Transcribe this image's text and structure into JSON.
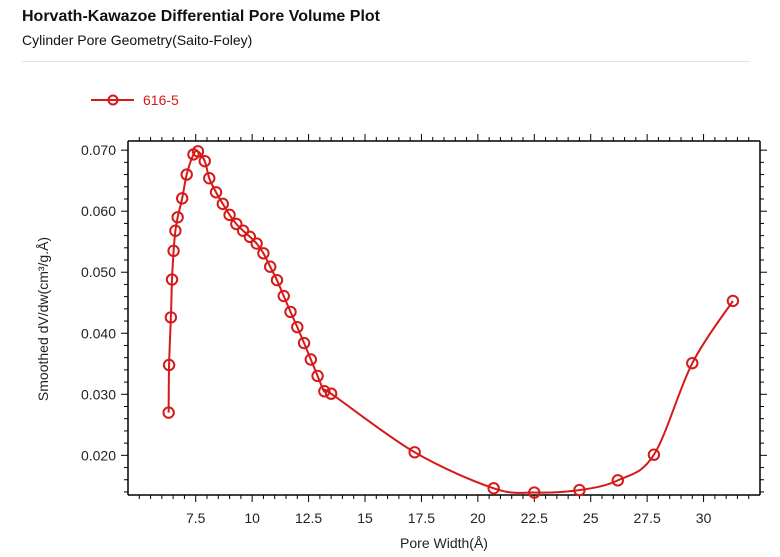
{
  "header": {
    "title": "Horvath-Kawazoe Differential Pore Volume Plot",
    "subtitle": "Cylinder Pore Geometry(Saito-Foley)"
  },
  "colors": {
    "series": "#d51a1a",
    "axis": "#000000"
  },
  "chart_data": {
    "type": "line",
    "xlabel": "Pore Width(Å)",
    "ylabel": "Smoothed dV/dw(cm³/g.Å)",
    "xlim": [
      4.5,
      32.5
    ],
    "ylim": [
      0.0135,
      0.0715
    ],
    "xticks": [
      "7.5",
      "10",
      "12.5",
      "15",
      "17.5",
      "20",
      "22.5",
      "25",
      "27.5",
      "30"
    ],
    "yticks": [
      "0.020",
      "0.030",
      "0.040",
      "0.050",
      "0.060",
      "0.070"
    ],
    "grid": false,
    "legend_position": "top-left",
    "series": [
      {
        "name": "616-5",
        "marker": "open-circle",
        "x": [
          6.3,
          6.32,
          6.4,
          6.45,
          6.52,
          6.6,
          6.7,
          6.9,
          7.1,
          7.4,
          7.6,
          7.9,
          8.1,
          8.4,
          8.7,
          9.0,
          9.3,
          9.6,
          9.9,
          10.2,
          10.5,
          10.8,
          11.1,
          11.4,
          11.7,
          12.0,
          12.3,
          12.6,
          12.9,
          13.2,
          13.5,
          17.2,
          20.7,
          22.5,
          24.5,
          26.2,
          27.8,
          29.5,
          31.3
        ],
        "y": [
          0.027,
          0.0348,
          0.0426,
          0.0488,
          0.0535,
          0.0568,
          0.059,
          0.0621,
          0.066,
          0.0693,
          0.0698,
          0.0682,
          0.0654,
          0.0631,
          0.0612,
          0.0594,
          0.0579,
          0.0568,
          0.0558,
          0.0547,
          0.0531,
          0.0509,
          0.0487,
          0.0461,
          0.0435,
          0.041,
          0.0384,
          0.0357,
          0.033,
          0.0305,
          0.0301,
          0.0205,
          0.0146,
          0.0139,
          0.0143,
          0.0159,
          0.0201,
          0.0351,
          0.0453
        ]
      }
    ]
  }
}
